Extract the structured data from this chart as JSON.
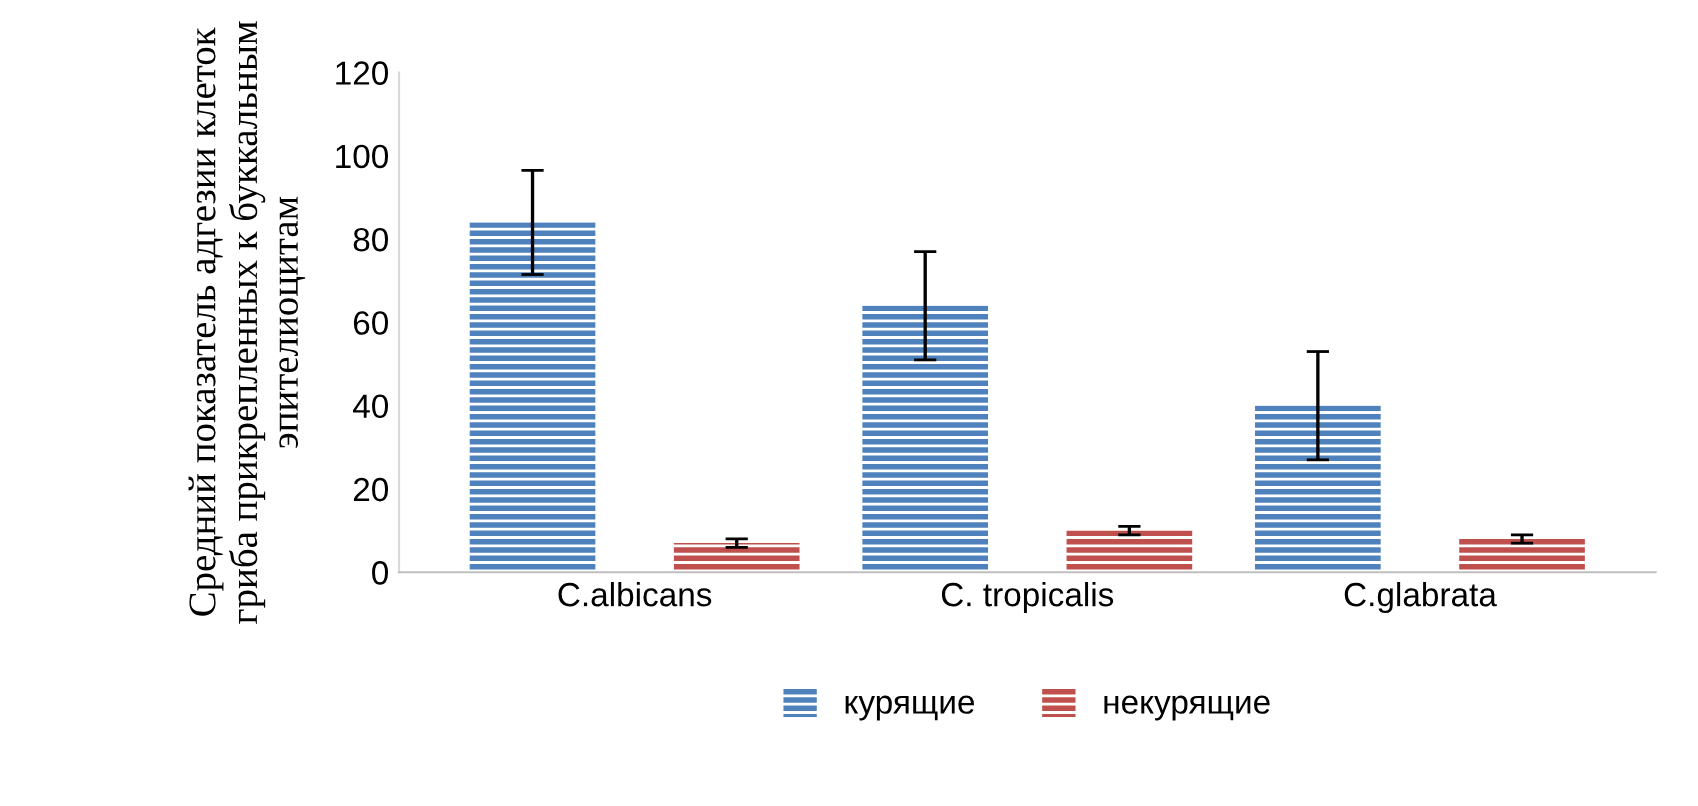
{
  "chart_data": {
    "type": "bar",
    "ylabel": "Средний показатель адгезии клеток гриба прикрепленных к буккальным эпителиоцитам",
    "categories": [
      "C.albicans",
      "C. tropicalis",
      "C.glabrata"
    ],
    "series": [
      {
        "name": "курящие",
        "color": "#4f81bd",
        "values": [
          84,
          64,
          40
        ],
        "errors": [
          12.5,
          13,
          13
        ]
      },
      {
        "name": "некурящие",
        "color": "#c0504d",
        "values": [
          7,
          10,
          8
        ],
        "errors": [
          1,
          1,
          1
        ]
      }
    ],
    "ylim": [
      0,
      120
    ],
    "yticks": [
      0,
      20,
      40,
      60,
      80,
      100,
      120
    ],
    "grid": false,
    "legend": "bottom"
  }
}
